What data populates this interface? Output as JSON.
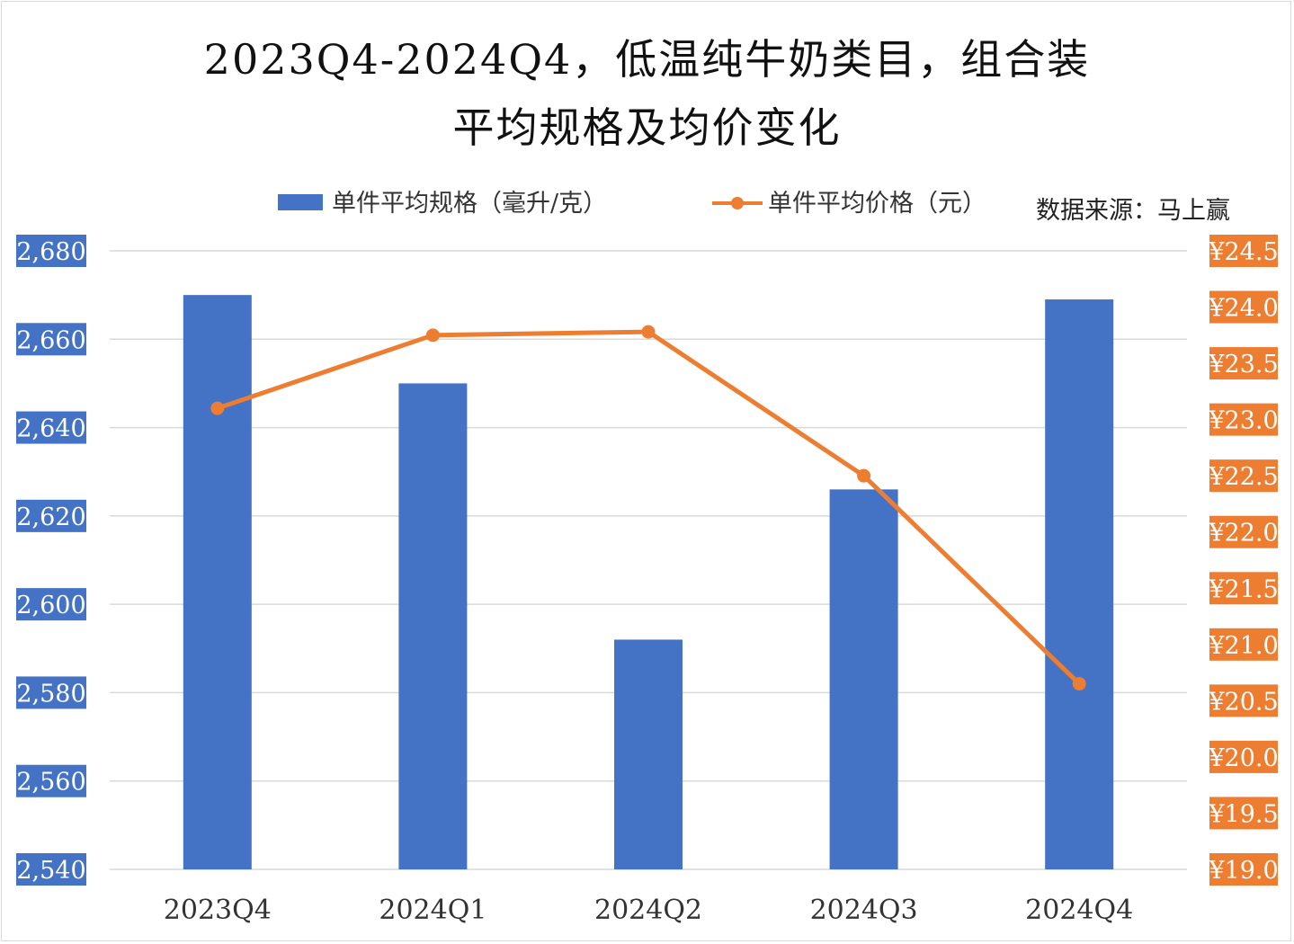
{
  "title_line1": "2023Q4-2024Q4，低温纯牛奶类目，组合装",
  "title_line2": "平均规格及均价变化",
  "source_note": "数据来源：马上赢",
  "colors": {
    "bar": "#4472c4",
    "line": "#ed7d31",
    "grid": "#d9d9d9",
    "left_tick_bg": "#4472c4",
    "right_tick_bg": "#ed7d31"
  },
  "chart_data": {
    "type": "bar",
    "categories": [
      "2023Q4",
      "2024Q1",
      "2024Q2",
      "2024Q3",
      "2024Q4"
    ],
    "series": [
      {
        "name": "单件平均规格（毫升/克）",
        "type": "bar",
        "axis": "left",
        "values": [
          2670,
          2650,
          2592,
          2626,
          2669
        ]
      },
      {
        "name": "单件平均价格（元）",
        "type": "line",
        "axis": "right",
        "values": [
          23.1,
          23.75,
          23.78,
          22.5,
          20.65
        ]
      }
    ],
    "y_left": {
      "min": 2540,
      "max": 2680,
      "step": 20,
      "ticks": [
        "2,540",
        "2,560",
        "2,580",
        "2,600",
        "2,620",
        "2,640",
        "2,660",
        "2,680"
      ]
    },
    "y_right": {
      "min": 19.0,
      "max": 24.5,
      "step": 0.5,
      "ticks": [
        "¥19.0",
        "¥19.5",
        "¥20.0",
        "¥20.5",
        "¥21.0",
        "¥21.5",
        "¥22.0",
        "¥22.5",
        "¥23.0",
        "¥23.5",
        "¥24.0",
        "¥24.5"
      ]
    },
    "grid": true,
    "legend_position": "top"
  }
}
